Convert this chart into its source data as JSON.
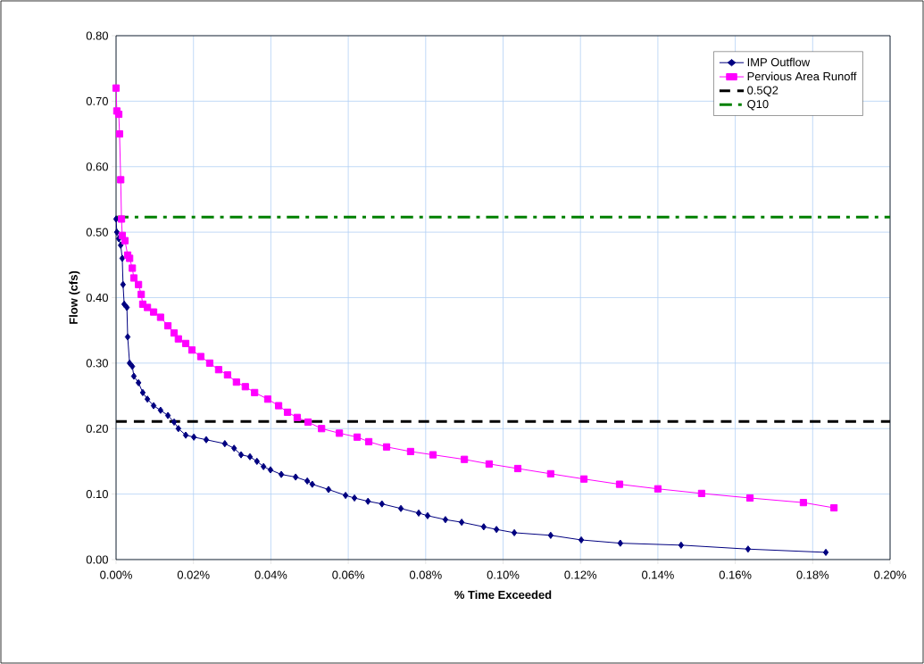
{
  "chart_data": {
    "type": "line",
    "xlabel": "% Time Exceeded",
    "ylabel": "Flow (cfs)",
    "xlim": [
      0,
      0.2
    ],
    "ylim": [
      0,
      0.8
    ],
    "xticks": [
      {
        "value": 0,
        "label": "0.00%"
      },
      {
        "value": 0.02,
        "label": "0.02%"
      },
      {
        "value": 0.04,
        "label": "0.04%"
      },
      {
        "value": 0.06,
        "label": "0.06%"
      },
      {
        "value": 0.08,
        "label": "0.08%"
      },
      {
        "value": 0.1,
        "label": "0.10%"
      },
      {
        "value": 0.12,
        "label": "0.12%"
      },
      {
        "value": 0.14,
        "label": "0.14%"
      },
      {
        "value": 0.16,
        "label": "0.16%"
      },
      {
        "value": 0.18,
        "label": "0.18%"
      },
      {
        "value": 0.2,
        "label": "0.20%"
      }
    ],
    "yticks": [
      {
        "value": 0,
        "label": "0.00"
      },
      {
        "value": 0.1,
        "label": "0.10"
      },
      {
        "value": 0.2,
        "label": "0.20"
      },
      {
        "value": 0.3,
        "label": "0.30"
      },
      {
        "value": 0.4,
        "label": "0.40"
      },
      {
        "value": 0.5,
        "label": "0.50"
      },
      {
        "value": 0.6,
        "label": "0.60"
      },
      {
        "value": 0.7,
        "label": "0.70"
      },
      {
        "value": 0.8,
        "label": "0.80"
      }
    ],
    "grid": true,
    "legend": "top right",
    "series": [
      {
        "name": "IMP Outflow",
        "color": "#000080",
        "marker": "diamond",
        "x": [
          0,
          0.0002,
          0.0007,
          0.0012,
          0.0016,
          0.0018,
          0.0021,
          0.0028,
          0.003,
          0.0035,
          0.0042,
          0.0046,
          0.0058,
          0.0069,
          0.0081,
          0.0097,
          0.0115,
          0.0134,
          0.015,
          0.0161,
          0.018,
          0.0201,
          0.0233,
          0.0281,
          0.0305,
          0.0323,
          0.0346,
          0.0364,
          0.0381,
          0.0399,
          0.0427,
          0.0464,
          0.0494,
          0.0507,
          0.0549,
          0.0593,
          0.0616,
          0.0651,
          0.0687,
          0.0736,
          0.0782,
          0.0805,
          0.0851,
          0.0893,
          0.095,
          0.0983,
          0.1029,
          0.1123,
          0.1202,
          0.1303,
          0.146,
          0.1633,
          0.1834
        ],
        "values": [
          0.52,
          0.5,
          0.49,
          0.48,
          0.46,
          0.42,
          0.39,
          0.385,
          0.34,
          0.3,
          0.295,
          0.28,
          0.27,
          0.255,
          0.245,
          0.235,
          0.228,
          0.22,
          0.21,
          0.2,
          0.19,
          0.187,
          0.183,
          0.177,
          0.17,
          0.16,
          0.157,
          0.15,
          0.142,
          0.137,
          0.13,
          0.126,
          0.12,
          0.115,
          0.107,
          0.098,
          0.094,
          0.089,
          0.085,
          0.078,
          0.071,
          0.067,
          0.061,
          0.057,
          0.05,
          0.046,
          0.041,
          0.037,
          0.03,
          0.025,
          0.022,
          0.016,
          0.011
        ]
      },
      {
        "name": "Pervious Area Runoff",
        "color": "#ff00ff",
        "marker": "square",
        "x": [
          0,
          0.0002,
          0.0007,
          0.0009,
          0.0012,
          0.0014,
          0.0016,
          0.0023,
          0.003,
          0.0035,
          0.0042,
          0.0046,
          0.0058,
          0.0065,
          0.0069,
          0.0081,
          0.0097,
          0.0115,
          0.0134,
          0.015,
          0.0161,
          0.018,
          0.0196,
          0.0219,
          0.0242,
          0.0265,
          0.0288,
          0.0311,
          0.0334,
          0.0358,
          0.0392,
          0.042,
          0.0443,
          0.0468,
          0.0496,
          0.0531,
          0.0577,
          0.0623,
          0.0653,
          0.0699,
          0.0761,
          0.0819,
          0.09,
          0.0964,
          0.1038,
          0.1123,
          0.1209,
          0.1301,
          0.14,
          0.1513,
          0.1638,
          0.1776,
          0.1855
        ],
        "values": [
          0.72,
          0.685,
          0.68,
          0.65,
          0.58,
          0.52,
          0.495,
          0.487,
          0.465,
          0.46,
          0.445,
          0.43,
          0.42,
          0.405,
          0.39,
          0.385,
          0.378,
          0.37,
          0.357,
          0.346,
          0.337,
          0.33,
          0.32,
          0.31,
          0.3,
          0.29,
          0.282,
          0.271,
          0.264,
          0.255,
          0.245,
          0.235,
          0.225,
          0.217,
          0.21,
          0.2,
          0.193,
          0.187,
          0.18,
          0.172,
          0.165,
          0.16,
          0.153,
          0.146,
          0.139,
          0.131,
          0.123,
          0.115,
          0.108,
          0.101,
          0.094,
          0.087,
          0.079
        ]
      }
    ],
    "ref_lines": [
      {
        "axis": "y",
        "value": 0.211,
        "label": "0.5Q2",
        "color": "#000000",
        "line_style": "dashed"
      },
      {
        "axis": "y",
        "value": 0.523,
        "label": "Q10",
        "color": "#008000",
        "line_style": "dashdot"
      }
    ]
  }
}
